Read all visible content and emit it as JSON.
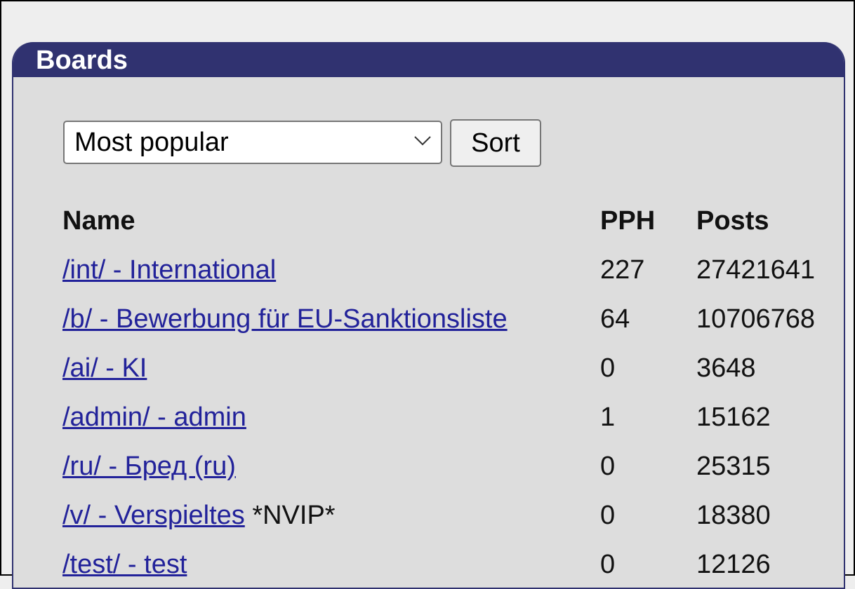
{
  "panel": {
    "title": "Boards"
  },
  "controls": {
    "sort_select_value": "Most popular",
    "sort_button": "Sort"
  },
  "table": {
    "headers": [
      "Name",
      "PPH",
      "Posts"
    ],
    "rows": [
      {
        "name": "/int/ - International",
        "note": "",
        "pph": "227",
        "posts": "27421641"
      },
      {
        "name": "/b/ - Bewerbung für EU-Sanktionsliste",
        "note": "",
        "pph": "64",
        "posts": "10706768"
      },
      {
        "name": "/ai/ - KI",
        "note": "",
        "pph": "0",
        "posts": "3648"
      },
      {
        "name": "/admin/ - admin",
        "note": "",
        "pph": "1",
        "posts": "15162"
      },
      {
        "name": "/ru/ - Бред (ru)",
        "note": "",
        "pph": "0",
        "posts": "25315"
      },
      {
        "name": "/v/ - Verspieltes",
        "note": " *NVIP*",
        "pph": "0",
        "posts": "18380"
      },
      {
        "name": "/test/ - test",
        "note": "",
        "pph": "0",
        "posts": "12126"
      }
    ]
  },
  "colors": {
    "header": "#303270",
    "link": "#22229a",
    "panel_bg": "#dddddd",
    "page_bg": "#eeeeee"
  }
}
